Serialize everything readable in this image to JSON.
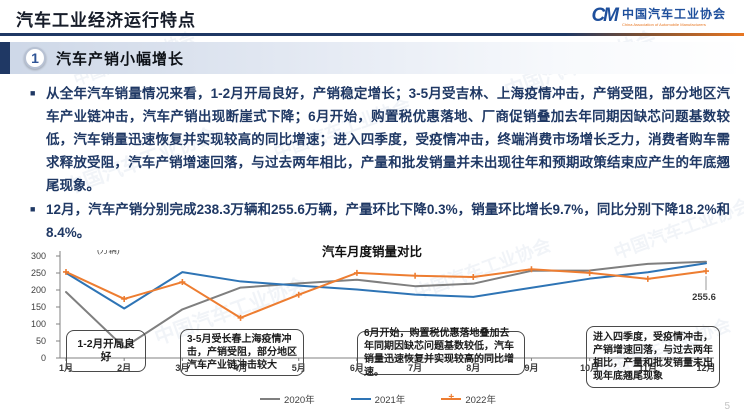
{
  "header": {
    "title": "汽车工业经济运行特点",
    "logo": {
      "mark": "CM",
      "org_cn": "中国汽车工业协会",
      "org_en": "China Association of Automobile Manufacturers"
    }
  },
  "section": {
    "number": "1",
    "title": "汽车产销小幅增长"
  },
  "bullets": [
    "从全年汽车销量情况来看，1-2月开局良好，产销稳定增长；3-5月受吉林、上海疫情冲击，产销受阻，部分地区汽车产业链冲击，汽车产销出现断崖式下降；6月开始，购置税优惠落地、厂商促销叠加去年同期因缺芯问题基数较低，汽车销量迅速恢复并实现较高的同比增速；进入四季度，受疫情冲击，终端消费市场增长乏力，消费者购车需求释放受阻，汽车产销增速回落，与过去两年相比，产量和批发销量并未出现往年和预期政策结束应产生的年底翘尾现象。",
    "12月，汽车产销分别完成238.3万辆和255.6万辆，产量环比下降0.3%，销量环比增长9.7%，同比分别下降18.2%和8.4%。"
  ],
  "chart_data": {
    "type": "line",
    "title": "汽车月度销量对比",
    "unit_label": "(万辆)",
    "categories": [
      "1月",
      "2月",
      "3月",
      "4月",
      "5月",
      "6月",
      "7月",
      "8月",
      "9月",
      "10月",
      "11月",
      "12月"
    ],
    "series": [
      {
        "name": "2020年",
        "color": "#7f7f7f",
        "marker": false,
        "values": [
          194.1,
          31.0,
          143.0,
          207.0,
          219.4,
          230.0,
          211.2,
          218.6,
          256.5,
          257.3,
          277.0,
          283.1
        ]
      },
      {
        "name": "2021年",
        "color": "#2e74b5",
        "marker": false,
        "values": [
          250.3,
          145.5,
          252.6,
          225.2,
          212.8,
          201.5,
          186.4,
          179.9,
          206.7,
          233.3,
          252.2,
          278.6
        ]
      },
      {
        "name": "2022年",
        "color": "#ed7d31",
        "marker": true,
        "values": [
          253.1,
          173.7,
          223.4,
          118.1,
          186.2,
          250.2,
          242.0,
          238.3,
          261.0,
          250.5,
          232.8,
          255.6
        ]
      }
    ],
    "ylim": [
      0,
      300
    ],
    "ytick_step": 50,
    "grid": false,
    "legend_position": "bottom",
    "end_label": {
      "series": "2022年",
      "text": "255.6"
    },
    "annotations": [
      {
        "text": "1-2月开局良好"
      },
      {
        "text": "3-5月受长春上海疫情冲击，产销受阻，部分地区汽车产业链冲击较大"
      },
      {
        "text": "6月开始，购置税优惠落地叠加去年同期因缺芯问题基数较低，汽车销量迅速恢复并实现较高的同比增速。"
      },
      {
        "text": "进入四季度，受疫情冲击，产销增速回落，与过去两年相比，产量和批发销量未出现年底翘尾现象"
      }
    ]
  },
  "watermark": {
    "text": "中国汽车工业协会"
  },
  "page_number": "5"
}
